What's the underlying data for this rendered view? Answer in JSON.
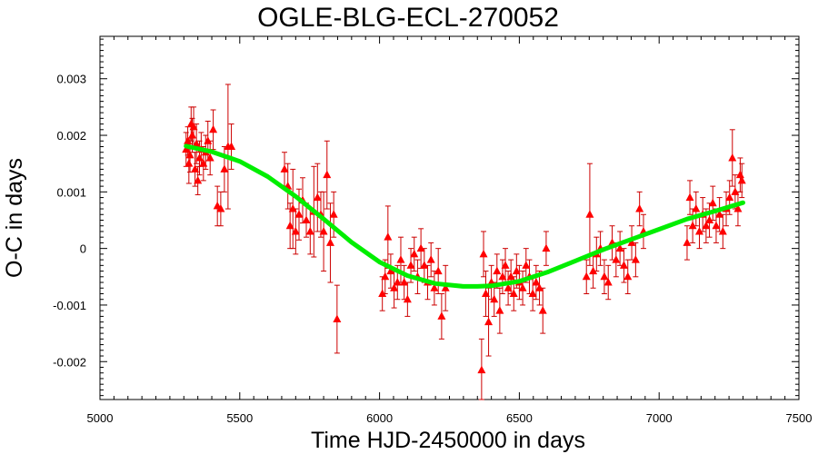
{
  "chart_data": {
    "type": "scatter",
    "title": "OGLE-BLG-ECL-270052",
    "xlabel": "Time HJD-2450000 in days",
    "ylabel": "O-C in days",
    "xlim": [
      5000,
      7500
    ],
    "ylim": [
      -0.00267,
      0.00375
    ],
    "x_ticks": [
      5000,
      5500,
      6000,
      6500,
      7000,
      7500
    ],
    "x_tick_labels": [
      "5000",
      "5500",
      "6000",
      "6500",
      "7000",
      "7500"
    ],
    "y_ticks": [
      -0.002,
      -0.001,
      0,
      0.001,
      0.002,
      0.003
    ],
    "y_tick_labels": [
      "-0.002",
      "-0.001",
      "0",
      "0.001",
      "0.002",
      "0.003"
    ],
    "grid": false,
    "legend": "none",
    "colors": {
      "points": "#ff0000",
      "errorbars": "#cc0000",
      "fit": "#00ee00"
    },
    "series": [
      {
        "kind": "points-with-errorbars",
        "marker": "triangle",
        "x": [
          5308,
          5314,
          5318,
          5322,
          5326,
          5330,
          5335,
          5340,
          5345,
          5350,
          5356,
          5362,
          5370,
          5378,
          5386,
          5394,
          5405,
          5420,
          5432,
          5445,
          5458,
          5470,
          5660,
          5672,
          5680,
          5690,
          5700,
          5712,
          5725,
          5738,
          5752,
          5765,
          5778,
          5790,
          5800,
          5812,
          5824,
          5836,
          5848,
          6010,
          6020,
          6030,
          6040,
          6052,
          6064,
          6076,
          6088,
          6100,
          6112,
          6124,
          6136,
          6148,
          6160,
          6172,
          6184,
          6196,
          6210,
          6222,
          6236,
          6365,
          6372,
          6380,
          6390,
          6400,
          6410,
          6420,
          6430,
          6440,
          6450,
          6460,
          6470,
          6480,
          6490,
          6500,
          6512,
          6524,
          6536,
          6548,
          6560,
          6572,
          6584,
          6596,
          6740,
          6752,
          6764,
          6776,
          6790,
          6804,
          6818,
          6832,
          6846,
          6860,
          6874,
          6888,
          6902,
          6916,
          6930,
          6944,
          7100,
          7110,
          7120,
          7132,
          7144,
          7156,
          7168,
          7180,
          7192,
          7204,
          7216,
          7228,
          7240,
          7252,
          7262,
          7272,
          7282,
          7290,
          7296
        ],
        "y": [
          0.00175,
          0.0019,
          0.0015,
          0.00165,
          0.0022,
          0.002,
          0.00215,
          0.0014,
          0.00185,
          0.0012,
          0.0016,
          0.00175,
          0.0015,
          0.0017,
          0.0019,
          0.0016,
          0.0021,
          0.00075,
          0.0007,
          0.0014,
          0.0018,
          0.0018,
          0.0014,
          0.0011,
          0.0004,
          0.0007,
          0.0003,
          0.0006,
          0.00085,
          0.0005,
          0.0003,
          0.00065,
          0.0009,
          0.0006,
          0.0003,
          0.0013,
          0.0001,
          0.0006,
          -0.00125,
          -0.0008,
          -0.0005,
          0.0002,
          -0.0004,
          -0.0007,
          -0.0006,
          -0.0002,
          -0.0006,
          -0.0009,
          -0.0003,
          -0.0001,
          -0.0005,
          0.0,
          -0.0003,
          -0.0006,
          -0.0002,
          -0.0007,
          -0.0004,
          -0.0012,
          -0.0007,
          -0.00215,
          -0.0001,
          -0.0008,
          -0.0013,
          -0.0006,
          -0.0009,
          -0.0004,
          -0.0011,
          -0.0005,
          -0.0003,
          -0.0007,
          -0.0005,
          -0.0008,
          -0.0004,
          -0.0006,
          -0.0007,
          -0.0003,
          -0.0005,
          -0.0008,
          -0.0006,
          -0.0007,
          -0.0011,
          0.0,
          -0.0005,
          0.0006,
          -0.0004,
          -0.0001,
          0.0,
          -0.0005,
          -0.0006,
          0.0001,
          -0.0002,
          0.0,
          -0.0003,
          -0.0005,
          0.0001,
          -0.0002,
          0.0007,
          0.0003,
          0.0001,
          0.0009,
          0.0004,
          0.0007,
          0.0003,
          0.0006,
          0.0004,
          0.0005,
          0.0008,
          0.0004,
          0.0006,
          0.0003,
          0.0007,
          0.0009,
          0.0016,
          0.001,
          0.0007,
          0.0013,
          0.0012
        ],
        "yerr": [
          0.0003,
          0.00025,
          0.00035,
          0.0003,
          0.0003,
          0.0003,
          0.00035,
          0.0003,
          0.00035,
          0.00025,
          0.0003,
          0.0003,
          0.0003,
          0.0003,
          0.00035,
          0.0003,
          0.00035,
          0.00035,
          0.0003,
          0.0004,
          0.0011,
          0.0004,
          0.0003,
          0.0004,
          0.0004,
          0.0007,
          0.0004,
          0.00045,
          0.0004,
          0.0003,
          0.0004,
          0.0008,
          0.0006,
          0.0004,
          0.0007,
          0.0006,
          0.0007,
          0.0004,
          0.0006,
          0.0003,
          0.0003,
          0.00055,
          0.0003,
          0.00035,
          0.0003,
          0.0004,
          0.0003,
          0.0003,
          0.0003,
          0.0003,
          0.0003,
          0.00035,
          0.0003,
          0.0003,
          0.0003,
          0.0003,
          0.0004,
          0.0004,
          0.0004,
          0.00055,
          0.0004,
          0.0004,
          0.0006,
          0.0003,
          0.0003,
          0.0003,
          0.0004,
          0.0003,
          0.0003,
          0.0003,
          0.0003,
          0.0003,
          0.0003,
          0.0003,
          0.0003,
          0.0003,
          0.0003,
          0.0003,
          0.0003,
          0.0003,
          0.0004,
          0.0003,
          0.0003,
          0.0009,
          0.0003,
          0.0003,
          0.0003,
          0.0003,
          0.0003,
          0.0003,
          0.0003,
          0.0003,
          0.0003,
          0.0003,
          0.0003,
          0.0003,
          0.0003,
          0.0003,
          0.0003,
          0.0003,
          0.0003,
          0.0003,
          0.0003,
          0.0003,
          0.0003,
          0.0003,
          0.0003,
          0.0003,
          0.0003,
          0.0003,
          0.0003,
          0.0003,
          0.0005,
          0.0003,
          0.0003,
          0.0003,
          0.0003
        ]
      },
      {
        "kind": "fit-curve",
        "x": [
          5308,
          5400,
          5500,
          5600,
          5700,
          5800,
          5900,
          6000,
          6100,
          6200,
          6300,
          6350,
          6400,
          6500,
          6600,
          6700,
          6800,
          6900,
          7000,
          7100,
          7200,
          7300
        ],
        "y": [
          0.00181,
          0.00171,
          0.00154,
          0.00127,
          0.00092,
          0.00052,
          0.00011,
          -0.00024,
          -0.00048,
          -0.00062,
          -0.00067,
          -0.00067,
          -0.00066,
          -0.00058,
          -0.00042,
          -0.00022,
          -2e-05,
          0.00016,
          0.00034,
          0.00052,
          0.00066,
          0.00081
        ]
      }
    ]
  }
}
